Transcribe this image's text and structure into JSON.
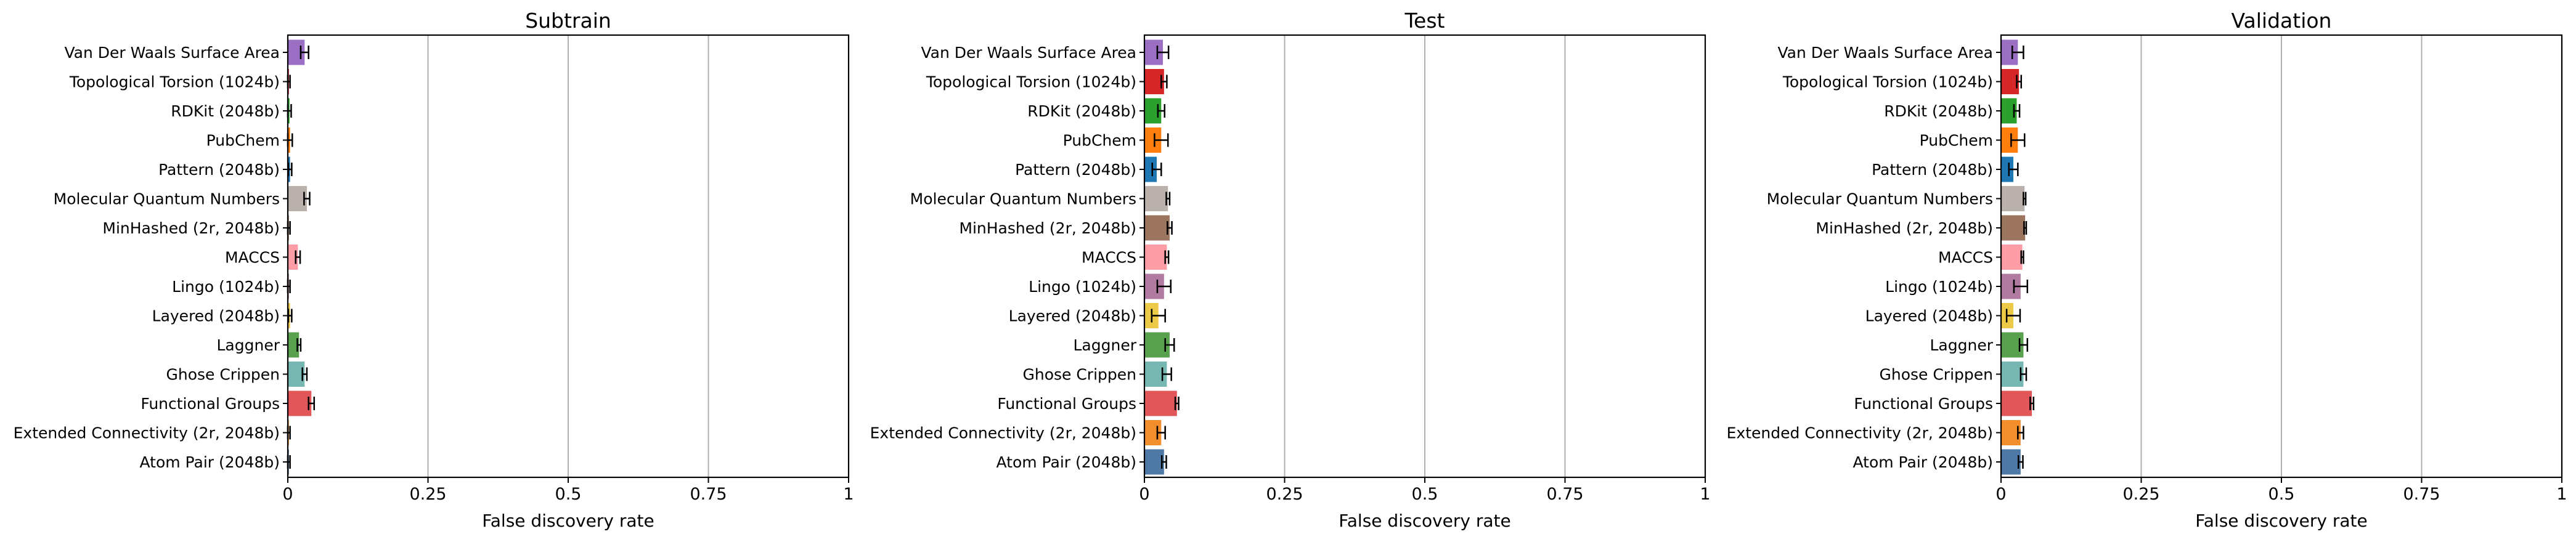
{
  "chart_data": [
    {
      "type": "bar",
      "orientation": "horizontal",
      "title": "Subtrain",
      "xlabel": "False discovery rate",
      "ylabel": "",
      "xlim": [
        0,
        1
      ],
      "xticks": [
        "0",
        "0.25",
        "0.5",
        "0.75",
        "1"
      ],
      "grid": "x",
      "categories": [
        "Van Der Waals Surface Area",
        "Topological Torsion (1024b)",
        "RDKit (2048b)",
        "PubChem",
        "Pattern (2048b)",
        "Molecular Quantum Numbers",
        "MinHashed (2r, 2048b)",
        "MACCS",
        "Lingo (1024b)",
        "Layered (2048b)",
        "Laggner",
        "Ghose Crippen",
        "Functional Groups",
        "Extended Connectivity (2r, 2048b)",
        "Atom Pair (2048b)"
      ],
      "values": [
        0.03,
        0.002,
        0.003,
        0.004,
        0.004,
        0.034,
        0.002,
        0.018,
        0.002,
        0.004,
        0.02,
        0.03,
        0.042,
        0.002,
        0.002
      ],
      "errors": [
        0.007,
        0.002,
        0.003,
        0.004,
        0.003,
        0.005,
        0.002,
        0.004,
        0.002,
        0.003,
        0.003,
        0.004,
        0.005,
        0.002,
        0.002
      ]
    },
    {
      "type": "bar",
      "orientation": "horizontal",
      "title": "Test",
      "xlabel": "False discovery rate",
      "ylabel": "",
      "xlim": [
        0,
        1
      ],
      "xticks": [
        "0",
        "0.25",
        "0.5",
        "0.75",
        "1"
      ],
      "grid": "x",
      "categories": [
        "Van Der Waals Surface Area",
        "Topological Torsion (1024b)",
        "RDKit (2048b)",
        "PubChem",
        "Pattern (2048b)",
        "Molecular Quantum Numbers",
        "MinHashed (2r, 2048b)",
        "MACCS",
        "Lingo (1024b)",
        "Layered (2048b)",
        "Laggner",
        "Ghose Crippen",
        "Functional Groups",
        "Extended Connectivity (2r, 2048b)",
        "Atom Pair (2048b)"
      ],
      "values": [
        0.033,
        0.035,
        0.03,
        0.03,
        0.022,
        0.042,
        0.045,
        0.04,
        0.035,
        0.025,
        0.045,
        0.04,
        0.058,
        0.03,
        0.035
      ],
      "errors": [
        0.01,
        0.005,
        0.006,
        0.012,
        0.008,
        0.003,
        0.004,
        0.003,
        0.012,
        0.012,
        0.008,
        0.008,
        0.003,
        0.007,
        0.004
      ]
    },
    {
      "type": "bar",
      "orientation": "horizontal",
      "title": "Validation",
      "xlabel": "False discovery rate",
      "ylabel": "",
      "xlim": [
        0,
        1
      ],
      "xticks": [
        "0",
        "0.25",
        "0.5",
        "0.75",
        "1"
      ],
      "grid": "x",
      "categories": [
        "Van Der Waals Surface Area",
        "Topological Torsion (1024b)",
        "RDKit (2048b)",
        "PubChem",
        "Pattern (2048b)",
        "Molecular Quantum Numbers",
        "MinHashed (2r, 2048b)",
        "MACCS",
        "Lingo (1024b)",
        "Layered (2048b)",
        "Laggner",
        "Ghose Crippen",
        "Functional Groups",
        "Extended Connectivity (2r, 2048b)",
        "Atom Pair (2048b)"
      ],
      "values": [
        0.03,
        0.032,
        0.028,
        0.03,
        0.022,
        0.042,
        0.043,
        0.038,
        0.035,
        0.022,
        0.04,
        0.04,
        0.055,
        0.035,
        0.035
      ],
      "errors": [
        0.01,
        0.004,
        0.005,
        0.012,
        0.008,
        0.002,
        0.002,
        0.002,
        0.012,
        0.012,
        0.007,
        0.005,
        0.003,
        0.005,
        0.004
      ]
    }
  ],
  "colors": {
    "Van Der Waals Surface Area": "#9a6fc4",
    "Topological Torsion (1024b)": "#d62728",
    "RDKit (2048b)": "#2ca02c",
    "PubChem": "#ff7f0e",
    "Pattern (2048b)": "#1f77b4",
    "Molecular Quantum Numbers": "#bab0ac",
    "MinHashed (2r, 2048b)": "#9c755f",
    "MACCS": "#ff9da7",
    "Lingo (1024b)": "#b07aa1",
    "Layered (2048b)": "#edc948",
    "Laggner": "#59a14f",
    "Ghose Crippen": "#76b7b2",
    "Functional Groups": "#e15759",
    "Extended Connectivity (2r, 2048b)": "#f28e2b",
    "Atom Pair (2048b)": "#4e79a7",
    "grid": "#b0b0b0",
    "axis": "#000000"
  }
}
